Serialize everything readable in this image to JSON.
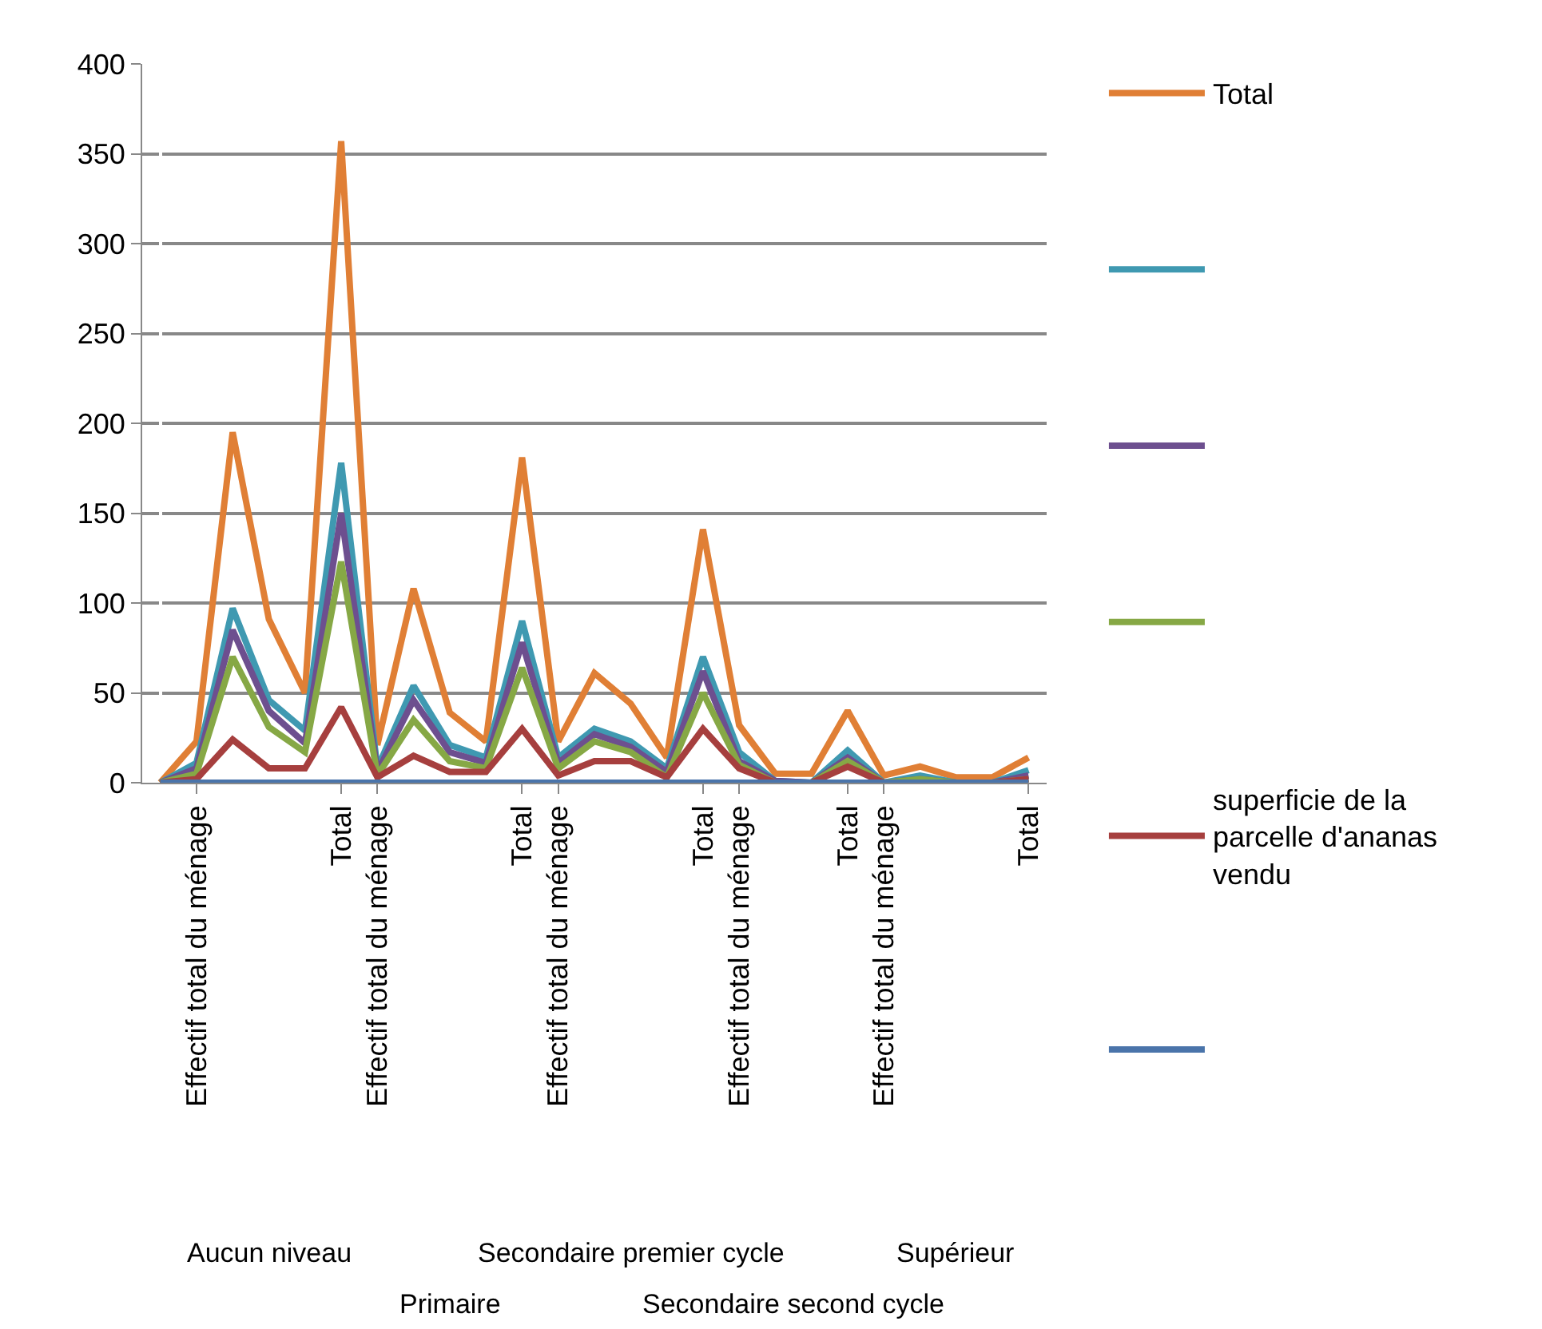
{
  "chart_data": {
    "type": "line",
    "categories": [
      null,
      "Effectif total du ménage",
      null,
      null,
      null,
      "Total",
      "Effectif total du ménage",
      null,
      null,
      null,
      "Total",
      "Effectif total du ménage",
      null,
      null,
      null,
      "Total",
      "Effectif total du ménage",
      null,
      null,
      "Total",
      "Effectif total du ménage",
      null,
      null,
      null,
      "Total"
    ],
    "annotations": [
      "Aucun niveau",
      "Primaire",
      "Secondaire premier cycle",
      "Secondaire second cycle",
      "Supérieur"
    ],
    "series": [
      {
        "name": "Total",
        "color": "#e07f35",
        "values": [
          0,
          23,
          195,
          91,
          50,
          357,
          21,
          108,
          39,
          23,
          181,
          23,
          61,
          44,
          14,
          141,
          32,
          5,
          5,
          40,
          4,
          9,
          3,
          3,
          14
        ]
      },
      {
        "name": null,
        "color": "#3f99b1",
        "values": [
          0,
          11,
          97,
          46,
          29,
          178,
          8,
          54,
          21,
          14,
          90,
          14,
          30,
          23,
          8,
          70,
          17,
          1,
          0,
          18,
          0,
          4,
          0,
          0,
          7
        ]
      },
      {
        "name": null,
        "color": "#6d4f8f",
        "values": [
          0,
          8,
          85,
          40,
          22,
          150,
          6,
          46,
          17,
          11,
          78,
          11,
          27,
          20,
          6,
          62,
          12,
          1,
          0,
          14,
          0,
          2,
          0,
          0,
          4
        ]
      },
      {
        "name": null,
        "color": "#86a845",
        "values": [
          0,
          5,
          70,
          31,
          17,
          123,
          4,
          35,
          12,
          8,
          64,
          8,
          23,
          17,
          3,
          50,
          10,
          0,
          0,
          12,
          0,
          2,
          0,
          0,
          2
        ]
      },
      {
        "name": "superficie de la parcelle d'ananas vendu",
        "color": "#a63f3e",
        "values": [
          0,
          2,
          24,
          8,
          8,
          42,
          3,
          15,
          6,
          6,
          30,
          4,
          12,
          12,
          3,
          30,
          8,
          0,
          0,
          9,
          0,
          0,
          0,
          0,
          2
        ]
      },
      {
        "name": null,
        "color": "#4a74aa",
        "values": [
          0,
          0,
          0,
          0,
          0,
          0,
          0,
          0,
          0,
          0,
          0,
          0,
          0,
          0,
          0,
          0,
          0,
          0,
          0,
          0,
          0,
          0,
          0,
          0,
          0
        ]
      }
    ],
    "ylim": [
      0,
      400
    ],
    "yticks": [
      0,
      50,
      100,
      150,
      200,
      250,
      300,
      350,
      400
    ],
    "grid": "y",
    "legend": "right",
    "marker": "none",
    "line_style": "solid"
  }
}
